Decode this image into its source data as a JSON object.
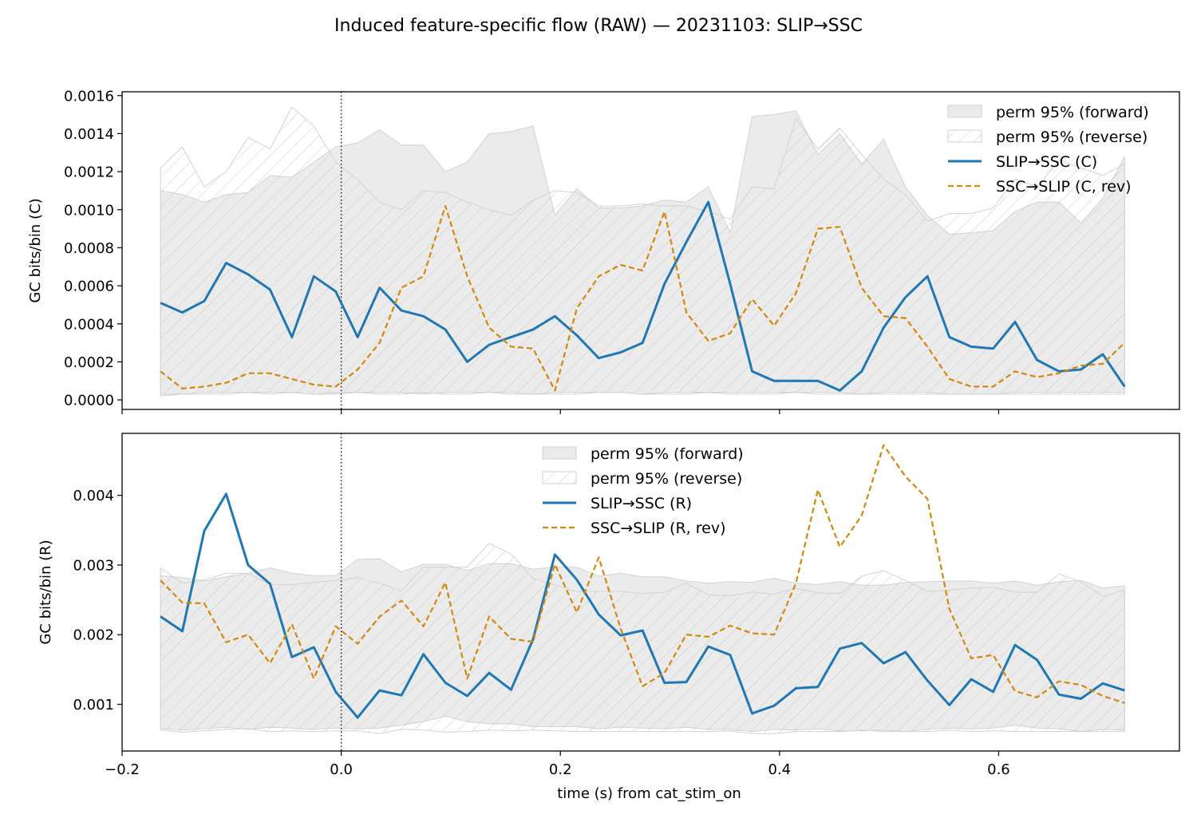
{
  "title": "Induced feature-specific flow (RAW) — 20231103: SLIP→SSC",
  "colors": {
    "forward_line": "#1f77b4",
    "reverse_line": "#d4870a",
    "band_fill": "#ebebeb",
    "band_edge": "#d2d2d2",
    "hatch": "#c9c9c9"
  },
  "chart_data": [
    {
      "type": "line",
      "panel": "top",
      "ylabel": "GC bits/bin (C)",
      "xlabel": "",
      "xlim": [
        -0.2,
        0.765
      ],
      "ylim": [
        -5e-05,
        0.00162
      ],
      "yticks": [
        0.0,
        0.0002,
        0.0004,
        0.0006,
        0.0008,
        0.001,
        0.0012,
        0.0014,
        0.0016
      ],
      "ytick_labels": [
        "0.0000",
        "0.0002",
        "0.0004",
        "0.0006",
        "0.0008",
        "0.0010",
        "0.0012",
        "0.0014",
        "0.0016"
      ],
      "xticks": [
        -0.2,
        0.0,
        0.2,
        0.4,
        0.6
      ],
      "xtick_labels": [
        "",
        "",
        "",
        "",
        ""
      ],
      "vline_x": 0.0,
      "legend_position": "upper-right",
      "x": [
        -0.165,
        -0.145,
        -0.125,
        -0.105,
        -0.085,
        -0.065,
        -0.045,
        -0.025,
        -0.005,
        0.015,
        0.035,
        0.055,
        0.075,
        0.095,
        0.115,
        0.135,
        0.155,
        0.175,
        0.195,
        0.215,
        0.235,
        0.255,
        0.275,
        0.295,
        0.315,
        0.335,
        0.355,
        0.375,
        0.395,
        0.415,
        0.435,
        0.455,
        0.475,
        0.495,
        0.515,
        0.535,
        0.555,
        0.575,
        0.595,
        0.615,
        0.635,
        0.655,
        0.675,
        0.695,
        0.715
      ],
      "series": [
        {
          "name": "SLIP→SSC (C)",
          "kind": "line",
          "color": "#1f77b4",
          "values": [
            0.00051,
            0.00046,
            0.00052,
            0.00072,
            0.00066,
            0.00058,
            0.00033,
            0.00065,
            0.00057,
            0.00033,
            0.00059,
            0.00047,
            0.00044,
            0.00037,
            0.0002,
            0.00029,
            0.00033,
            0.00037,
            0.00044,
            0.00034,
            0.00022,
            0.00025,
            0.0003,
            0.00061,
            0.00083,
            0.00104,
            0.00061,
            0.00015,
            0.0001,
            0.0001,
            0.0001,
            5e-05,
            0.00015,
            0.00038,
            0.00054,
            0.00065,
            0.00033,
            0.00028,
            0.00027,
            0.00041,
            0.00021,
            0.00015,
            0.00016,
            0.00024,
            7e-05
          ]
        },
        {
          "name": "SSC→SLIP (C, rev)",
          "kind": "dashed",
          "color": "#d4870a",
          "values": [
            0.00015,
            6e-05,
            7e-05,
            9e-05,
            0.00014,
            0.00014,
            0.00011,
            8e-05,
            7e-05,
            0.00016,
            0.0003,
            0.00059,
            0.00065,
            0.00102,
            0.00065,
            0.00038,
            0.00028,
            0.00027,
            5e-05,
            0.00048,
            0.00065,
            0.00071,
            0.00068,
            0.00099,
            0.00046,
            0.00031,
            0.00035,
            0.00053,
            0.00039,
            0.00056,
            0.0009,
            0.00091,
            0.00059,
            0.00044,
            0.00043,
            0.00028,
            0.00011,
            7e-05,
            7e-05,
            0.00015,
            0.00012,
            0.00014,
            0.00018,
            0.00019,
            0.0003
          ]
        },
        {
          "name": "perm 95% (forward)",
          "kind": "band",
          "lower": [
            3e-05,
            3e-05,
            4e-05,
            4e-05,
            4e-05,
            4e-05,
            4e-05,
            3e-05,
            3e-05,
            4e-05,
            4e-05,
            4e-05,
            3e-05,
            4e-05,
            4e-05,
            4e-05,
            4e-05,
            3e-05,
            4e-05,
            4e-05,
            4e-05,
            4e-05,
            3e-05,
            4e-05,
            4e-05,
            4e-05,
            4e-05,
            4e-05,
            4e-05,
            4e-05,
            4e-05,
            4e-05,
            3e-05,
            4e-05,
            4e-05,
            4e-05,
            3e-05,
            3e-05,
            3e-05,
            4e-05,
            4e-05,
            4e-05,
            4e-05,
            4e-05,
            4e-05
          ],
          "upper": [
            0.0011,
            0.00108,
            0.00104,
            0.00108,
            0.00109,
            0.00118,
            0.00117,
            0.00125,
            0.00133,
            0.00135,
            0.00142,
            0.00134,
            0.00134,
            0.0012,
            0.00125,
            0.0014,
            0.00141,
            0.00144,
            0.00097,
            0.00111,
            0.00101,
            0.00101,
            0.00102,
            0.00105,
            0.00104,
            0.00112,
            0.00088,
            0.00149,
            0.0015,
            0.00152,
            0.00129,
            0.0014,
            0.00124,
            0.00137,
            0.00112,
            0.00097,
            0.00087,
            0.00088,
            0.00089,
            0.00099,
            0.00104,
            0.00104,
            0.00093,
            0.00106,
            0.00128
          ]
        },
        {
          "name": "perm 95% (reverse)",
          "kind": "hatched",
          "lower": [
            2e-05,
            3e-05,
            3e-05,
            3e-05,
            4e-05,
            3e-05,
            4e-05,
            3e-05,
            4e-05,
            4e-05,
            3e-05,
            3e-05,
            4e-05,
            3e-05,
            3e-05,
            4e-05,
            3e-05,
            3e-05,
            3e-05,
            3e-05,
            4e-05,
            4e-05,
            3e-05,
            3e-05,
            3e-05,
            4e-05,
            3e-05,
            3e-05,
            3e-05,
            4e-05,
            3e-05,
            3e-05,
            3e-05,
            3e-05,
            3e-05,
            3e-05,
            3e-05,
            3e-05,
            3e-05,
            3e-05,
            3e-05,
            3e-05,
            3e-05,
            3e-05,
            3e-05
          ],
          "upper": [
            0.00122,
            0.00133,
            0.00112,
            0.0012,
            0.00138,
            0.00132,
            0.00154,
            0.00144,
            0.00125,
            0.00116,
            0.00104,
            0.001,
            0.0011,
            0.00109,
            0.00104,
            0.001,
            0.00097,
            0.00105,
            0.0011,
            0.00109,
            0.00102,
            0.00102,
            0.00103,
            0.00102,
            0.00102,
            0.00099,
            0.00095,
            0.00112,
            0.00111,
            0.00148,
            0.00132,
            0.00143,
            0.00129,
            0.00116,
            0.00108,
            0.00094,
            0.00098,
            0.00098,
            0.00101,
            0.00116,
            0.00112,
            0.00126,
            0.00122,
            0.00118,
            0.00124
          ]
        }
      ]
    },
    {
      "type": "line",
      "panel": "bottom",
      "ylabel": "GC bits/bin (R)",
      "xlabel": "time (s) from cat_stim_on",
      "xlim": [
        -0.2,
        0.765
      ],
      "ylim": [
        0.00033,
        0.00489
      ],
      "yticks": [
        0.001,
        0.002,
        0.003,
        0.004
      ],
      "ytick_labels": [
        "0.001",
        "0.002",
        "0.003",
        "0.004"
      ],
      "xticks": [
        -0.2,
        0.0,
        0.2,
        0.4,
        0.6
      ],
      "xtick_labels": [
        "−0.2",
        "0.0",
        "0.2",
        "0.4",
        "0.6"
      ],
      "vline_x": 0.0,
      "legend_position": "upper-center",
      "x": [
        -0.165,
        -0.145,
        -0.125,
        -0.105,
        -0.085,
        -0.065,
        -0.045,
        -0.025,
        -0.005,
        0.015,
        0.035,
        0.055,
        0.075,
        0.095,
        0.115,
        0.135,
        0.155,
        0.175,
        0.195,
        0.215,
        0.235,
        0.255,
        0.275,
        0.295,
        0.315,
        0.335,
        0.355,
        0.375,
        0.395,
        0.415,
        0.435,
        0.455,
        0.475,
        0.495,
        0.515,
        0.535,
        0.555,
        0.575,
        0.595,
        0.615,
        0.635,
        0.655,
        0.675,
        0.695,
        0.715
      ],
      "series": [
        {
          "name": "SLIP→SSC (R)",
          "kind": "line",
          "color": "#1f77b4",
          "values": [
            0.00226,
            0.00205,
            0.00349,
            0.00402,
            0.003,
            0.00273,
            0.00168,
            0.00182,
            0.00118,
            0.00081,
            0.0012,
            0.00113,
            0.00172,
            0.00131,
            0.00112,
            0.00145,
            0.00121,
            0.00193,
            0.00315,
            0.00279,
            0.00229,
            0.00199,
            0.00206,
            0.00131,
            0.00132,
            0.00183,
            0.00171,
            0.00087,
            0.00098,
            0.00123,
            0.00125,
            0.0018,
            0.00188,
            0.00159,
            0.00175,
            0.00134,
            0.00099,
            0.00136,
            0.00118,
            0.00185,
            0.00164,
            0.00114,
            0.00108,
            0.0013,
            0.0012
          ]
        },
        {
          "name": "SSC→SLIP (R, rev)",
          "kind": "dashed",
          "color": "#d4870a",
          "values": [
            0.00278,
            0.00246,
            0.00245,
            0.00189,
            0.002,
            0.00159,
            0.00215,
            0.00137,
            0.00212,
            0.00187,
            0.00226,
            0.00249,
            0.00212,
            0.00275,
            0.00137,
            0.00226,
            0.00194,
            0.0019,
            0.00301,
            0.00232,
            0.00311,
            0.00209,
            0.00126,
            0.00145,
            0.002,
            0.00197,
            0.00213,
            0.00202,
            0.002,
            0.00274,
            0.00408,
            0.00326,
            0.00371,
            0.00472,
            0.00427,
            0.00395,
            0.00237,
            0.00166,
            0.00171,
            0.00119,
            0.0011,
            0.00133,
            0.00128,
            0.00112,
            0.00102
          ]
        },
        {
          "name": "perm 95% (forward)",
          "kind": "band",
          "lower": [
            0.00065,
            0.00063,
            0.00065,
            0.00067,
            0.00064,
            0.00067,
            0.00066,
            0.00064,
            0.00066,
            0.00065,
            0.00066,
            0.0007,
            0.00075,
            0.00083,
            0.00075,
            0.00072,
            0.00072,
            0.00068,
            0.00068,
            0.00068,
            0.00065,
            0.00067,
            0.00066,
            0.00065,
            0.00067,
            0.00064,
            0.00064,
            0.00061,
            0.00064,
            0.00063,
            0.00065,
            0.00062,
            0.00062,
            0.00063,
            0.00061,
            0.00064,
            0.00066,
            0.00065,
            0.00066,
            0.0007,
            0.00066,
            0.00065,
            0.00061,
            0.00064,
            0.00063
          ],
          "upper": [
            0.00285,
            0.00282,
            0.00277,
            0.00283,
            0.00288,
            0.00296,
            0.00288,
            0.00285,
            0.00285,
            0.00308,
            0.00309,
            0.0029,
            0.00301,
            0.00301,
            0.00292,
            0.00302,
            0.00302,
            0.00294,
            0.00297,
            0.00297,
            0.00284,
            0.00288,
            0.00283,
            0.00283,
            0.00277,
            0.00274,
            0.00276,
            0.00275,
            0.00281,
            0.00274,
            0.00272,
            0.00276,
            0.00271,
            0.00271,
            0.00275,
            0.00276,
            0.00277,
            0.00277,
            0.00274,
            0.00277,
            0.00271,
            0.00276,
            0.00278,
            0.00267,
            0.0027
          ]
        },
        {
          "name": "perm 95% (reverse)",
          "kind": "hatched",
          "lower": [
            0.00063,
            0.0006,
            0.00062,
            0.00064,
            0.00065,
            0.00061,
            0.00062,
            0.00061,
            0.00062,
            0.00062,
            0.00058,
            0.00064,
            0.00063,
            0.0006,
            0.00061,
            0.00063,
            0.00062,
            0.00063,
            0.00062,
            0.00061,
            0.00061,
            0.00061,
            0.00061,
            0.00061,
            0.00061,
            0.00061,
            0.00062,
            0.00058,
            0.00058,
            0.00061,
            0.00061,
            0.00061,
            0.00063,
            0.00061,
            0.00061,
            0.00061,
            0.00063,
            0.00061,
            0.00062,
            0.00061,
            0.00061,
            0.00061,
            0.00061,
            0.00061,
            0.00061
          ],
          "upper": [
            0.00296,
            0.00274,
            0.00279,
            0.00288,
            0.00288,
            0.00272,
            0.00272,
            0.00275,
            0.00278,
            0.00282,
            0.00274,
            0.00263,
            0.00297,
            0.00297,
            0.00297,
            0.00331,
            0.00316,
            0.00281,
            0.00271,
            0.00262,
            0.00262,
            0.00262,
            0.00259,
            0.00261,
            0.00274,
            0.00257,
            0.00256,
            0.00261,
            0.00258,
            0.00267,
            0.0026,
            0.00259,
            0.00284,
            0.00292,
            0.00278,
            0.00262,
            0.00264,
            0.00267,
            0.00268,
            0.00261,
            0.00261,
            0.00287,
            0.00276,
            0.00255,
            0.00264
          ]
        }
      ]
    }
  ]
}
